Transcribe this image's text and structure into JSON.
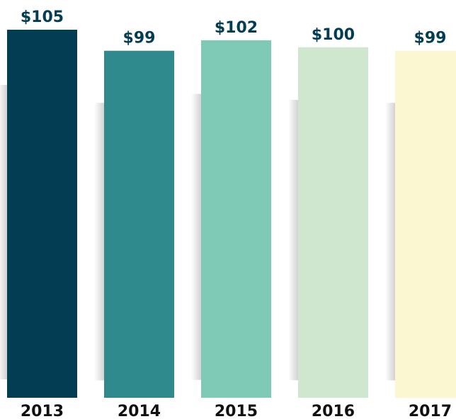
{
  "chart_data": {
    "type": "bar",
    "categories": [
      "2013",
      "2014",
      "2015",
      "2016",
      "2017"
    ],
    "values": [
      105,
      99,
      102,
      100,
      99
    ],
    "value_labels": [
      "$105",
      "$99",
      "$102",
      "$100",
      "$99"
    ],
    "colors": [
      "#023d54",
      "#2e8a8c",
      "#7ecab6",
      "#cfe6cf",
      "#fbf7d0"
    ],
    "label_color": "#023d54"
  }
}
